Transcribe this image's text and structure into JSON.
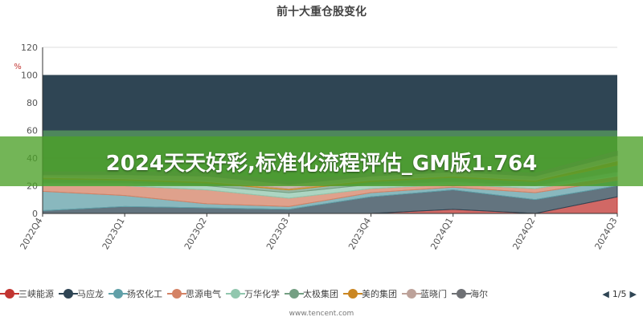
{
  "overlay": {
    "text": "2024天天好彩,标准化流程评估_GM版1.764"
  },
  "chart_data": {
    "type": "area",
    "title": "前十大重仓股变化",
    "ylabel": "%",
    "xlabel": "",
    "ylim": [
      0,
      120
    ],
    "yticks": [
      0,
      20,
      40,
      60,
      80,
      100,
      120
    ],
    "categories": [
      "2022Q4",
      "2023Q1",
      "2023Q2",
      "2023Q3",
      "2023Q4",
      "2024Q1",
      "2024Q2",
      "2024Q3"
    ],
    "grid": true,
    "legend_position": "bottom",
    "series": [
      {
        "name": "三峡能源",
        "color": "#c23531",
        "values": [
          0,
          0,
          0,
          0,
          0,
          3,
          0,
          12
        ]
      },
      {
        "name": "马应龙",
        "color": "#2f4554",
        "values": [
          2,
          5,
          4,
          3,
          12,
          14,
          10,
          8
        ]
      },
      {
        "name": "扬农化工",
        "color": "#61a0a8",
        "values": [
          14,
          8,
          3,
          2,
          3,
          2,
          5,
          4
        ]
      },
      {
        "name": "思源电气",
        "color": "#d48265",
        "values": [
          4,
          7,
          10,
          6,
          3,
          2,
          3,
          3
        ]
      },
      {
        "name": "万华化学",
        "color": "#91c7ae",
        "values": [
          2,
          2,
          3,
          4,
          3,
          2,
          2,
          3
        ]
      },
      {
        "name": "太极集团",
        "color": "#749f83",
        "values": [
          3,
          2,
          2,
          2,
          2,
          3,
          3,
          5
        ]
      },
      {
        "name": "美的集团",
        "color": "#ca8622",
        "values": [
          1,
          1,
          1,
          1,
          1,
          1,
          1,
          3
        ]
      },
      {
        "name": "蓝晓门",
        "color": "#bda29a",
        "values": [
          2,
          3,
          4,
          3,
          3,
          3,
          3,
          4
        ]
      },
      {
        "name": "海尔",
        "color": "#6e7074",
        "values": [
          2,
          2,
          3,
          2,
          2,
          2,
          2,
          3
        ]
      }
    ],
    "background_series_colors": [
      "#2f4554",
      "#3b7a4a",
      "#4f9a3a",
      "#7cbf4a",
      "#a6cf5a",
      "#caa74a",
      "#d8863a"
    ],
    "pagination": "1/5",
    "footer_note": "www.tencent.com"
  }
}
